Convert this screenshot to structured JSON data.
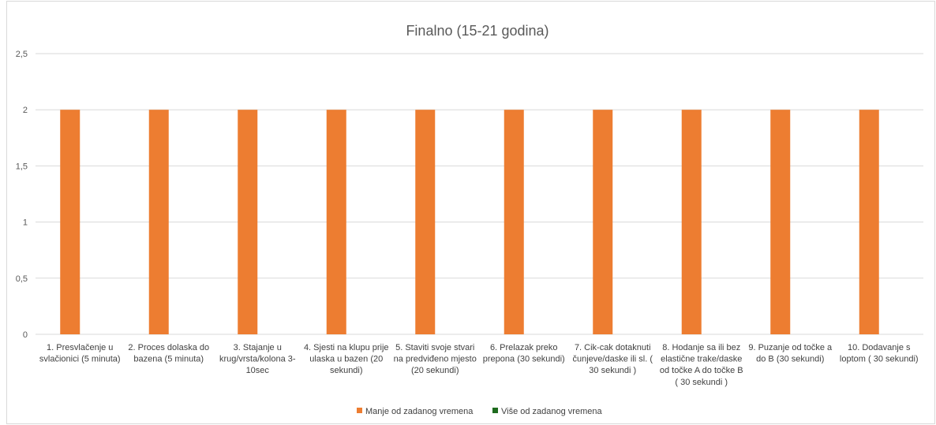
{
  "chart_data": {
    "type": "bar",
    "title": "Finalno (15-21 godina)",
    "xlabel": "",
    "ylabel": "",
    "ylim": [
      0,
      2.5
    ],
    "yticks": [
      "0",
      "0,5",
      "1",
      "1,5",
      "2",
      "2,5"
    ],
    "ytick_values": [
      0,
      0.5,
      1,
      1.5,
      2,
      2.5
    ],
    "grid": true,
    "legend_position": "bottom",
    "categories": [
      [
        "1. Presvlačenje u",
        "svlačionici (5 minuta)"
      ],
      [
        "2. Proces dolaska do",
        "bazena (5 minuta)"
      ],
      [
        "3. Stajanje u",
        "krug/vrsta/kolona 3-",
        "10sec"
      ],
      [
        "4. Sjesti na klupu prije",
        "ulaska u bazen (20",
        "sekundi)"
      ],
      [
        "5. Staviti svoje stvari",
        "na predviđeno mjesto",
        "(20 sekundi)"
      ],
      [
        "6. Prelazak preko",
        "prepona (30 sekundi)"
      ],
      [
        "7. Cik-cak dotaknuti",
        "čunjeve/daske ili sl. (",
        "30 sekundi )"
      ],
      [
        "8. Hodanje sa ili bez",
        "elastične trake/daske",
        "od točke A do točke B",
        "( 30 sekundi )"
      ],
      [
        "9. Puzanje od točke a",
        "do B (30 sekundi)"
      ],
      [
        "10. Dodavanje s",
        "loptom ( 30 sekundi)"
      ]
    ],
    "series": [
      {
        "name": "Manje od zadanog vremena",
        "color": "#ED7D31",
        "values": [
          2,
          2,
          2,
          2,
          2,
          2,
          2,
          2,
          2,
          2
        ]
      },
      {
        "name": "Više od zadanog vremena",
        "color": "#1E6B1E",
        "values": [
          0,
          0,
          0,
          0,
          0,
          0,
          0,
          0,
          0,
          0
        ]
      }
    ]
  }
}
